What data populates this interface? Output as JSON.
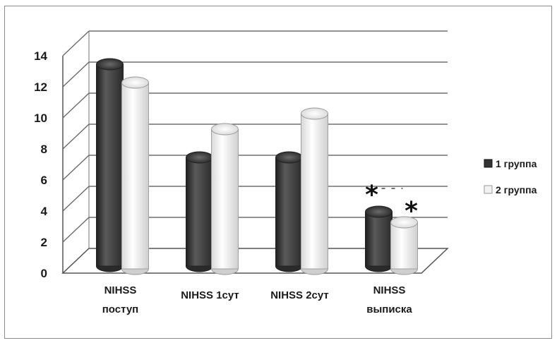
{
  "chart_data": {
    "type": "bar",
    "title": "",
    "xlabel": "",
    "ylabel": "",
    "ylim": [
      0,
      14
    ],
    "ytick_step": 2,
    "grid": true,
    "legend_position": "right",
    "categories": [
      [
        "NIHSS",
        "поступ"
      ],
      [
        "NIHSS 1сут"
      ],
      [
        "NIHSS 2сут"
      ],
      [
        "NIHSS",
        "выписка"
      ]
    ],
    "series": [
      {
        "name": "1 группа",
        "values": [
          13,
          7,
          7,
          3.5
        ],
        "color": "#3c3c3c"
      },
      {
        "name": "2 группа",
        "values": [
          12,
          9,
          10,
          3
        ],
        "color": "#e6e6e6"
      }
    ],
    "annotations": [
      {
        "text": "*",
        "category_index": 3,
        "series_index": 0
      },
      {
        "text": "*",
        "category_index": 3,
        "series_index": 1
      }
    ]
  }
}
